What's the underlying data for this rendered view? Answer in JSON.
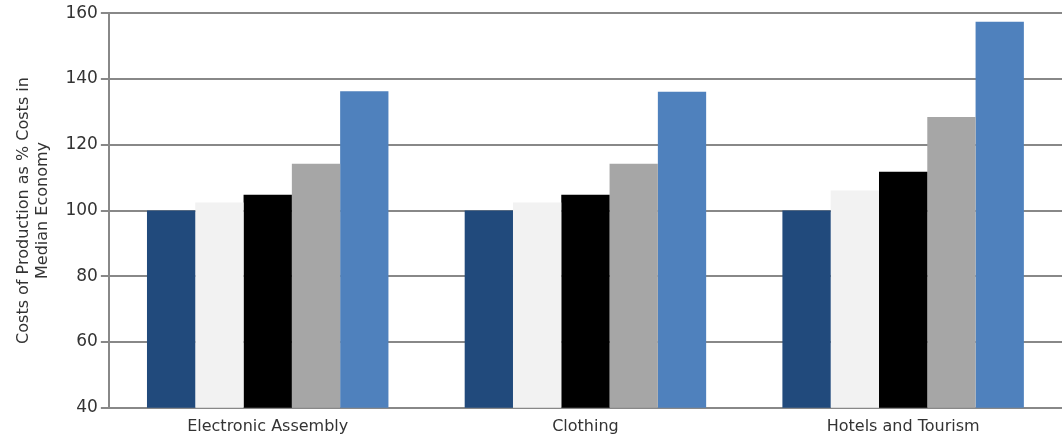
{
  "chart_data": {
    "type": "bar",
    "ylabel": "Costs of Production as % Costs in\nMedian Economy",
    "categories": [
      "Electronic Assembly",
      "Clothing",
      "Hotels and Tourism"
    ],
    "series": [
      {
        "color": "#214a7c",
        "values": [
          100,
          100,
          100
        ]
      },
      {
        "color": "#f2f2f2",
        "values": [
          102.4,
          102.4,
          106.1
        ]
      },
      {
        "color": "#000000",
        "values": [
          104.8,
          104.8,
          111.8
        ]
      },
      {
        "color": "#a6a6a6",
        "values": [
          114.2,
          114.2,
          128.4
        ]
      },
      {
        "color": "#4f81bd",
        "values": [
          136.3,
          136.1,
          157.4
        ]
      }
    ],
    "ylim": [
      40,
      160
    ],
    "yticks": [
      40,
      60,
      80,
      100,
      120,
      140,
      160
    ],
    "grid": "y",
    "legend": false
  }
}
